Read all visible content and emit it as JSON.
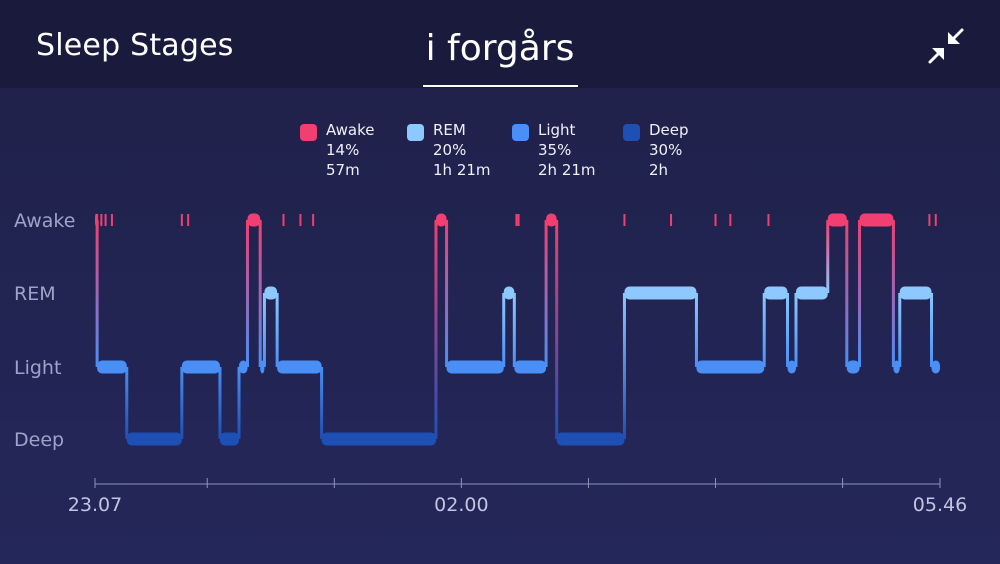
{
  "header": {
    "title": "Sleep Stages",
    "tab_label": "i forgårs",
    "collapse_icon": "collapse-arrows-icon"
  },
  "colors": {
    "awake": "#f23f71",
    "rem": "#8dc9ff",
    "light": "#4a8ff5",
    "deep": "#1e4fb5",
    "axis": "#8e92bd"
  },
  "legend": [
    {
      "key": "awake",
      "name": "Awake",
      "pct": "14%",
      "dur": "57m"
    },
    {
      "key": "rem",
      "name": "REM",
      "pct": "20%",
      "dur": "1h 21m"
    },
    {
      "key": "light",
      "name": "Light",
      "pct": "35%",
      "dur": "2h 21m"
    },
    {
      "key": "deep",
      "name": "Deep",
      "pct": "30%",
      "dur": "2h"
    }
  ],
  "chart_data": {
    "type": "step",
    "stages": [
      "Awake",
      "REM",
      "Light",
      "Deep"
    ],
    "x_start_min": 0,
    "x_end_min": 399,
    "x_tick_labels": [
      {
        "min": 0,
        "label": "23.07"
      },
      {
        "min": 173,
        "label": "02.00"
      },
      {
        "min": 399,
        "label": "05.46"
      }
    ],
    "x_minor_ticks_min": [
      0,
      53,
      113,
      173,
      233,
      293,
      353,
      399
    ],
    "segments": [
      {
        "stage": "Awake",
        "start": 0,
        "end": 1
      },
      {
        "stage": "Light",
        "start": 1,
        "end": 15
      },
      {
        "stage": "Deep",
        "start": 15,
        "end": 41
      },
      {
        "stage": "Light",
        "start": 41,
        "end": 59
      },
      {
        "stage": "Deep",
        "start": 59,
        "end": 68
      },
      {
        "stage": "Light",
        "start": 68,
        "end": 72
      },
      {
        "stage": "Awake",
        "start": 72,
        "end": 78
      },
      {
        "stage": "Light",
        "start": 78,
        "end": 80
      },
      {
        "stage": "REM",
        "start": 80,
        "end": 86
      },
      {
        "stage": "Light",
        "start": 86,
        "end": 107
      },
      {
        "stage": "Deep",
        "start": 107,
        "end": 161
      },
      {
        "stage": "Awake",
        "start": 161,
        "end": 166
      },
      {
        "stage": "Light",
        "start": 166,
        "end": 193
      },
      {
        "stage": "REM",
        "start": 193,
        "end": 198
      },
      {
        "stage": "Light",
        "start": 198,
        "end": 213
      },
      {
        "stage": "Awake",
        "start": 213,
        "end": 218
      },
      {
        "stage": "Deep",
        "start": 218,
        "end": 250
      },
      {
        "stage": "REM",
        "start": 250,
        "end": 284
      },
      {
        "stage": "Light",
        "start": 284,
        "end": 316
      },
      {
        "stage": "REM",
        "start": 316,
        "end": 327
      },
      {
        "stage": "Light",
        "start": 327,
        "end": 331
      },
      {
        "stage": "REM",
        "start": 331,
        "end": 346
      },
      {
        "stage": "Awake",
        "start": 346,
        "end": 355
      },
      {
        "stage": "Light",
        "start": 355,
        "end": 361
      },
      {
        "stage": "Awake",
        "start": 361,
        "end": 377
      },
      {
        "stage": "Light",
        "start": 377,
        "end": 380
      },
      {
        "stage": "REM",
        "start": 380,
        "end": 395
      },
      {
        "stage": "Light",
        "start": 395,
        "end": 399
      }
    ],
    "awake_markers_min": [
      1,
      3,
      5,
      8,
      41,
      44,
      89,
      97,
      103,
      199,
      200,
      250,
      272,
      293,
      300,
      318,
      394,
      397
    ]
  }
}
